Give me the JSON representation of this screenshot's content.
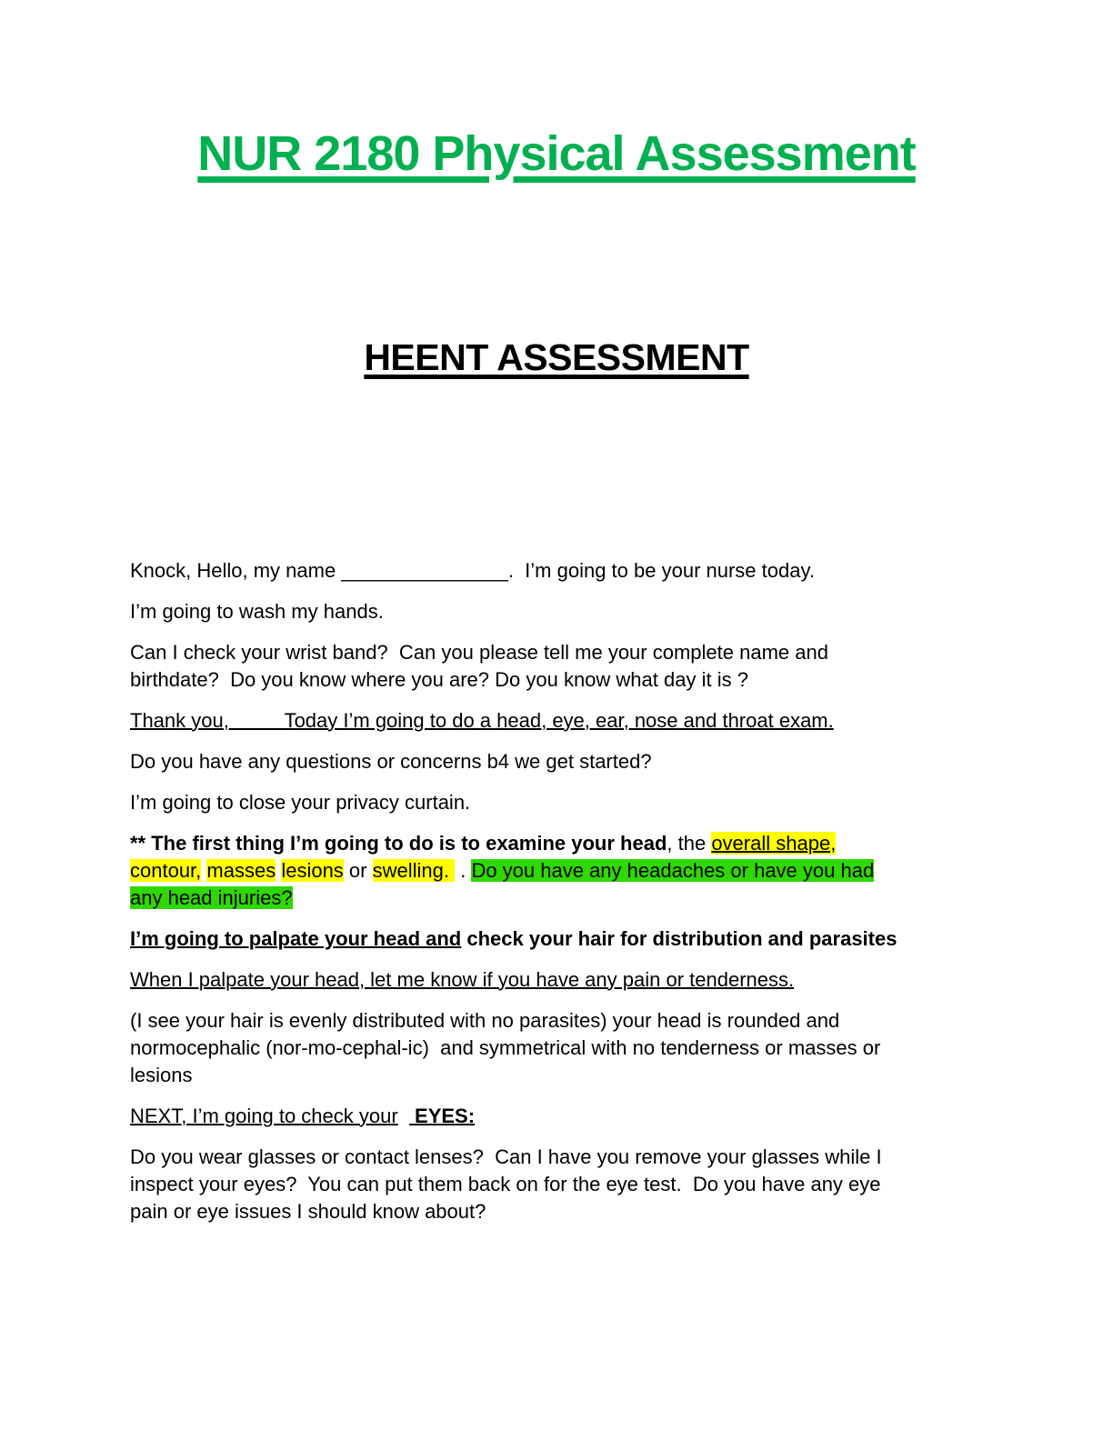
{
  "document": {
    "title": "NUR 2180 Physical Assessment",
    "heading": "HEENT ASSESSMENT",
    "colors": {
      "title_green": "#00B050",
      "highlight_yellow": "#FFFF00",
      "highlight_green": "#2FD800"
    },
    "paragraphs": [
      {
        "name": "greeting",
        "segments": [
          {
            "t": "Knock, Hello, my name _______________.  I’m going to be your nurse today."
          }
        ]
      },
      {
        "name": "wash-hands",
        "segments": [
          {
            "t": "I’m going to wash my hands."
          }
        ]
      },
      {
        "name": "identify-patient",
        "segments": [
          {
            "t": "Can I check your wrist band?  Can you please tell me your complete name and\nbirthdate?  Do you know where you are? Do you know what day it is ?"
          }
        ]
      },
      {
        "name": "exam-intro",
        "segments": [
          {
            "t": "Thank you,          Today I’m going to do a head, eye, ear, nose and throat exam.",
            "u": true
          }
        ]
      },
      {
        "name": "questions-before-start",
        "segments": [
          {
            "t": "Do you have any questions or concerns b4 we get started?"
          }
        ]
      },
      {
        "name": "privacy-curtain",
        "segments": [
          {
            "t": "I’m going to close your privacy curtain."
          }
        ]
      },
      {
        "name": "examine-head",
        "segments": [
          {
            "t": "** The first thing I’m going to do is to examine your head",
            "b": true
          },
          {
            "t": ", the "
          },
          {
            "t": "overall shape",
            "u": true,
            "hl": "yellow"
          },
          {
            "t": ",",
            "hl": "yellow"
          },
          {
            "t": "\n"
          },
          {
            "t": "contour,",
            "hl": "yellow"
          },
          {
            "t": " "
          },
          {
            "t": "masses",
            "hl": "yellow"
          },
          {
            "t": " "
          },
          {
            "t": "lesions",
            "hl": "yellow"
          },
          {
            "t": " or "
          },
          {
            "t": "swelling. ",
            "hl": "yellow"
          },
          {
            "t": " . "
          },
          {
            "t": "Do you have any headaches or have you had\nany head injuries?",
            "hl": "green"
          }
        ]
      },
      {
        "name": "palpate-head",
        "segments": [
          {
            "t": "I’m going to palpate your head and",
            "b": true,
            "u": true
          },
          {
            "t": " check your hair for distribution and parasites",
            "b": true
          }
        ]
      },
      {
        "name": "palpate-pain",
        "segments": [
          {
            "t": "When I palpate your head, let me know if you have any pain or tenderness.",
            "u": true
          }
        ]
      },
      {
        "name": "head-findings",
        "segments": [
          {
            "t": "(I see your hair is evenly distributed with no parasites) your head is rounded and\nnormocephalic (nor-mo-cephal-ic)  and symmetrical with no tenderness or masses or\nlesions"
          }
        ]
      },
      {
        "name": "next-eyes",
        "segments": [
          {
            "t": "NEXT, I’m going to check your",
            "u": true
          },
          {
            "t": "  "
          },
          {
            "t": " EYES:",
            "b": true,
            "u": true
          }
        ]
      },
      {
        "name": "eyes-questions",
        "segments": [
          {
            "t": "Do you wear glasses or contact lenses?  Can I have you remove your glasses while I\ninspect your eyes?  You can put them back on for the eye test.  Do you have any eye\npain or eye issues I should know about?"
          }
        ]
      }
    ]
  }
}
